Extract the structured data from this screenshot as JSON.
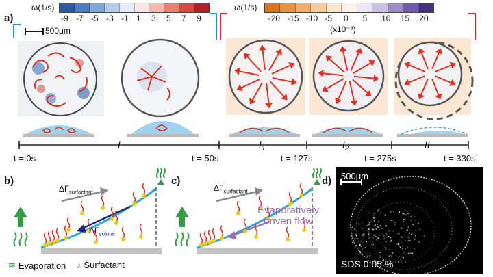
{
  "panel_a": {
    "letter": "a)",
    "colorbar_left": {
      "label": "ω(1/s)",
      "ticks": [
        "-9",
        "-7",
        "-5",
        "-3",
        "-1",
        "1",
        "3",
        "5",
        "7",
        "9"
      ],
      "colors": [
        "#2b5aa5",
        "#4a7cc0",
        "#7ea8d8",
        "#b4cce8",
        "#e2ecf6",
        "#fbe6e2",
        "#f4b8ac",
        "#e98074",
        "#d44a3e",
        "#b2202a"
      ]
    },
    "colorbar_right": {
      "label": "ω(1/s)",
      "ticks": [
        "-20",
        "-15",
        "-10",
        "-5",
        "0",
        "5",
        "10",
        "15",
        "20"
      ],
      "multiplier": "(x10⁻³)",
      "colors": [
        "#d9731f",
        "#e8913f",
        "#f0ae6a",
        "#f6cb9b",
        "#fbe5cc",
        "#fdf3ea",
        "#ece7f3",
        "#c9bfe0",
        "#9c8dc6",
        "#6e5aa8",
        "#44307f"
      ]
    },
    "scalebar": "500μm",
    "time_labels": [
      "t = 0s",
      "t = 50s",
      "t = 127s",
      "t = 275s",
      "t = 330s"
    ],
    "stages": [
      "I",
      "I",
      "I",
      "II"
    ],
    "stage_subscripts": [
      "",
      "1",
      "2",
      ""
    ]
  },
  "panel_b": {
    "letter": "b)",
    "gamma_surfactant": "surfactant",
    "gamma_solutal": "solutal",
    "legend_evaporation": "Evaporation",
    "legend_surfactant": "Surfactant"
  },
  "panel_c": {
    "letter": "c)",
    "gamma_surfactant": "surfactant",
    "flow_line1": "Evaporatively",
    "flow_line2": "driven flow"
  },
  "panel_d": {
    "letter": "d)",
    "scalebar": "500μm",
    "caption": "SDS 0.05 %"
  },
  "colors": {
    "bracket_blue": "#2f8fd6",
    "bracket_red": "#d62828",
    "vortex_red": "#e0301e",
    "droplet_blue": "#9fd3ee",
    "interface_blue": "#2ea4e0",
    "arrow_green": "#2e9e3e",
    "arrow_purple": "#9b6bbf",
    "arrow_navy": "#22247a",
    "arrow_grey": "#8a8a8a",
    "bg_peach": "#fbe7d3"
  }
}
